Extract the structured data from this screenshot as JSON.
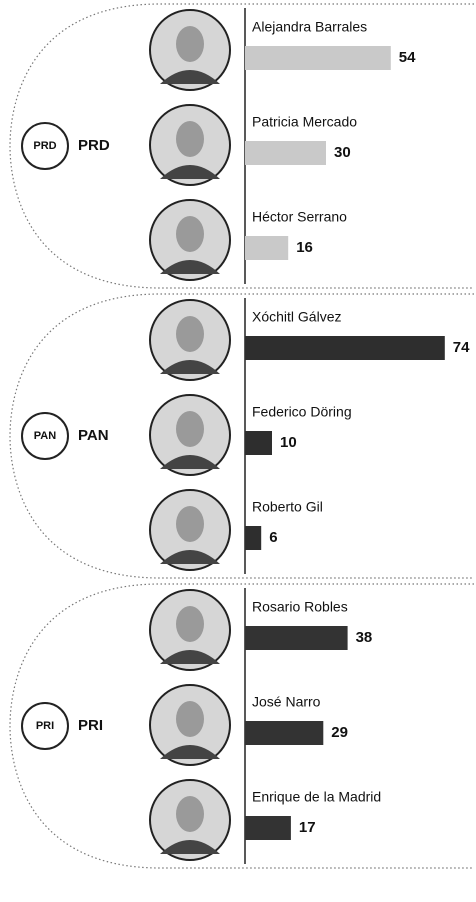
{
  "chart_data": [
    {
      "type": "bar",
      "title": "PRD",
      "categories": [
        "Alejandra Barrales",
        "Patricia Mercado",
        "Héctor Serrano"
      ],
      "values": [
        54,
        30,
        16
      ],
      "color": "#c9c9c9"
    },
    {
      "type": "bar",
      "title": "PAN",
      "categories": [
        "Xóchitl Gálvez",
        "Federico Döring",
        "Roberto Gil"
      ],
      "values": [
        74,
        10,
        6
      ],
      "color": "#2e2e2e"
    },
    {
      "type": "bar",
      "title": "PRI",
      "categories": [
        "Rosario Robles",
        "José Narro",
        "Enrique de la Madrid"
      ],
      "values": [
        38,
        29,
        17
      ],
      "color": "#333333"
    }
  ]
}
